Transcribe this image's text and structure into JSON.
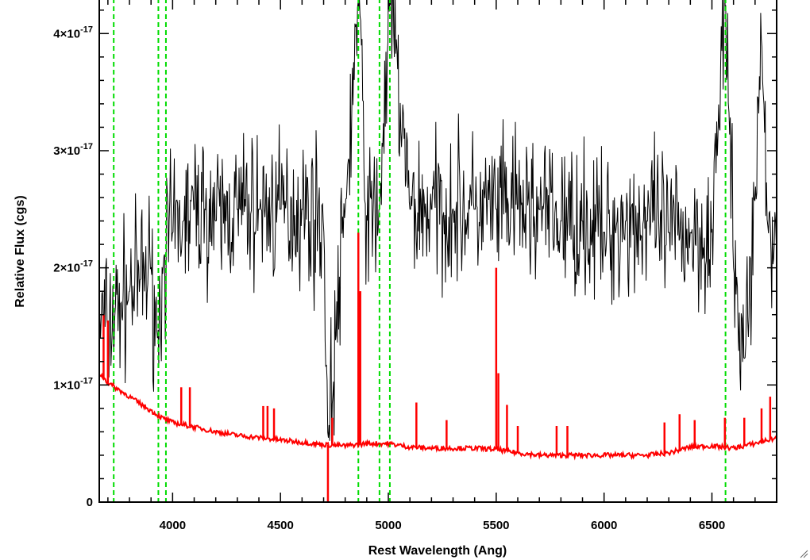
{
  "chart_data": {
    "type": "line",
    "xlabel": "Rest Wavelength (Ang)",
    "ylabel": "Relative Flux (cgs)",
    "xlim": [
      3660,
      6800
    ],
    "ylim": [
      0,
      4.3e-17
    ],
    "x_ticks": [
      4000,
      4500,
      5000,
      5500,
      6000,
      6500
    ],
    "x_tick_labels": [
      "4000",
      "4500",
      "5000",
      "5500",
      "6000",
      "6500"
    ],
    "y_ticks": [
      0,
      1e-17,
      2e-17,
      3e-17,
      4e-17
    ],
    "y_tick_labels": [
      {
        "mantissa": "0",
        "exponent": ""
      },
      {
        "mantissa": "1×10",
        "exponent": "-17"
      },
      {
        "mantissa": "2×10",
        "exponent": "-17"
      },
      {
        "mantissa": "3×10",
        "exponent": "-17"
      },
      {
        "mantissa": "4×10",
        "exponent": "-17"
      }
    ],
    "grid": false,
    "series": [
      {
        "role": "spectrum",
        "color": "#000000",
        "style": "solid",
        "x": [
          3660,
          3700,
          3760,
          3800,
          3850,
          3900,
          3930,
          3960,
          4000,
          4050,
          4100,
          4150,
          4200,
          4300,
          4400,
          4500,
          4600,
          4700,
          4720,
          4800,
          4861,
          4900,
          4959,
          5007,
          5100,
          5200,
          5300,
          5400,
          5500,
          5600,
          5700,
          5800,
          5900,
          6000,
          6100,
          6200,
          6300,
          6400,
          6500,
          6563,
          6600,
          6650,
          6700,
          6730,
          6760,
          6800
        ],
        "y": [
          1.6e-17,
          1.5e-17,
          1.7e-17,
          1.8e-17,
          1.9e-17,
          2e-17,
          1.4e-17,
          2.1e-17,
          2.3e-17,
          2.4e-17,
          2.5e-17,
          2.5e-17,
          2.4e-17,
          2.5e-17,
          2.5e-17,
          2.5e-17,
          2.5e-17,
          2.4e-17,
          5e-18,
          2.5e-17,
          4.3e-17,
          2.4e-17,
          2.5e-17,
          4.3e-17,
          2.5e-17,
          2.5e-17,
          2.5e-17,
          2.5e-17,
          2.5e-17,
          2.5e-17,
          2.5e-17,
          2.4e-17,
          2.4e-17,
          2.3e-17,
          2.4e-17,
          2.4e-17,
          2.3e-17,
          2.3e-17,
          2.3e-17,
          4.3e-17,
          2e-17,
          1.2e-17,
          2.6e-17,
          4e-17,
          2.3e-17,
          2.2e-17
        ],
        "noise_amplitude": 4.5e-18
      },
      {
        "role": "error",
        "color": "#ff0000",
        "style": "solid",
        "x": [
          3660,
          3700,
          3750,
          3800,
          3850,
          3900,
          3950,
          4000,
          4100,
          4200,
          4300,
          4400,
          4500,
          4600,
          4700,
          4800,
          4900,
          5000,
          5100,
          5200,
          5300,
          5400,
          5500,
          5600,
          5700,
          5800,
          5900,
          6000,
          6100,
          6200,
          6300,
          6400,
          6500,
          6600,
          6700,
          6800
        ],
        "y": [
          1.1e-17,
          1.02e-17,
          9.6e-18,
          9e-18,
          8.4e-18,
          7.8e-18,
          7.2e-18,
          6.8e-18,
          6.4e-18,
          6e-18,
          5.7e-18,
          5.5e-18,
          5.3e-18,
          5.1e-18,
          4.9e-18,
          4.8e-18,
          5e-18,
          5e-18,
          4.7e-18,
          4.6e-18,
          4.6e-18,
          4.6e-18,
          4.5e-18,
          4.2e-18,
          4e-18,
          4e-18,
          4e-18,
          4e-18,
          4e-18,
          4e-18,
          4.2e-18,
          4.7e-18,
          4.8e-18,
          4.6e-18,
          5e-18,
          5.5e-18
        ],
        "spikes": [
          {
            "x": 3680,
            "y": 1.6e-17
          },
          {
            "x": 3700,
            "y": 1.55e-17
          },
          {
            "x": 4040,
            "y": 9.8e-18
          },
          {
            "x": 4080,
            "y": 9.8e-18
          },
          {
            "x": 4420,
            "y": 8.2e-18
          },
          {
            "x": 4440,
            "y": 8.2e-18
          },
          {
            "x": 4470,
            "y": 8e-18
          },
          {
            "x": 4720,
            "y": 0.0
          },
          {
            "x": 4740,
            "y": 7.2e-18
          },
          {
            "x": 4861,
            "y": 2.3e-17
          },
          {
            "x": 4870,
            "y": 1.8e-17
          },
          {
            "x": 5130,
            "y": 8.5e-18
          },
          {
            "x": 5270,
            "y": 7e-18
          },
          {
            "x": 5500,
            "y": 2e-17
          },
          {
            "x": 5510,
            "y": 1.1e-17
          },
          {
            "x": 5550,
            "y": 8.3e-18
          },
          {
            "x": 5600,
            "y": 6.5e-18
          },
          {
            "x": 5780,
            "y": 6.5e-18
          },
          {
            "x": 5830,
            "y": 6.5e-18
          },
          {
            "x": 6280,
            "y": 6.8e-18
          },
          {
            "x": 6350,
            "y": 7.5e-18
          },
          {
            "x": 6420,
            "y": 7e-18
          },
          {
            "x": 6560,
            "y": 7.2e-18
          },
          {
            "x": 6650,
            "y": 7.2e-18
          },
          {
            "x": 6730,
            "y": 8e-18
          },
          {
            "x": 6770,
            "y": 9e-18
          }
        ]
      }
    ],
    "reference_lines": {
      "color": "#00dd00",
      "style": "dashed",
      "x": [
        3727,
        3934,
        3969,
        4861,
        4959,
        5007,
        6563
      ]
    }
  }
}
